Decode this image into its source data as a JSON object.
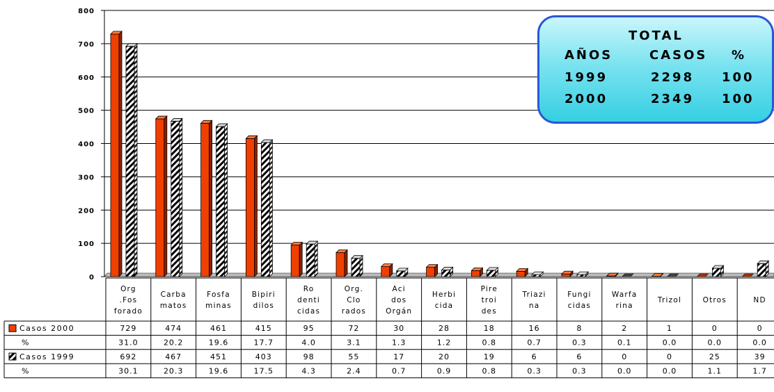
{
  "chart_data": {
    "type": "bar",
    "categories": [
      [
        "Org",
        ".Fos",
        "forado"
      ],
      [
        "Carba",
        "matos"
      ],
      [
        "Fosfa",
        "minas"
      ],
      [
        "Bipiri",
        "dilos"
      ],
      [
        "Ro",
        "denti",
        "cidas"
      ],
      [
        "Org.",
        "Clo",
        "rados"
      ],
      [
        "Aci",
        "dos",
        "Orgán"
      ],
      [
        "Herbi",
        "cida"
      ],
      [
        "Pire",
        "troi",
        "des"
      ],
      [
        "Triazi",
        "na"
      ],
      [
        "Fungi",
        "cidas"
      ],
      [
        "Warfa",
        "rina"
      ],
      [
        "Trizol"
      ],
      [
        "Otros"
      ],
      [
        "ND"
      ]
    ],
    "series": [
      {
        "name": "Casos 2000",
        "color": "#f04000",
        "pattern": "solid",
        "values": [
          729,
          474,
          461,
          415,
          95,
          72,
          30,
          28,
          18,
          16,
          8,
          2,
          1,
          0,
          0
        ],
        "percent": [
          "31.0",
          "20.2",
          "19.6",
          "17.7",
          "4.0",
          "3.1",
          "1.3",
          "1.2",
          "0.8",
          "0.7",
          "0.3",
          "0.1",
          "0.0",
          "0.0",
          "0.0"
        ]
      },
      {
        "name": "Casos 1999",
        "color": "#000000",
        "pattern": "diagonal-hatch",
        "values": [
          692,
          467,
          451,
          403,
          98,
          55,
          17,
          20,
          19,
          6,
          6,
          0,
          0,
          25,
          39
        ],
        "percent": [
          "30.1",
          "20.3",
          "19.6",
          "17.5",
          "4.3",
          "2.4",
          "0.7",
          "0.9",
          "0.8",
          "0.3",
          "0.3",
          "0.0",
          "0.0",
          "1.1",
          "1.7"
        ]
      }
    ],
    "row_labels": {
      "casos_2000": "Casos 2000",
      "pct_2000": "%",
      "casos_1999": "Casos 1999",
      "pct_1999": "%"
    },
    "ylim": [
      0,
      800
    ],
    "yticks": [
      0,
      100,
      200,
      300,
      400,
      500,
      600,
      700,
      800
    ],
    "grid": true,
    "legend": "data-table"
  },
  "total_box": {
    "title": "TOTAL",
    "headers": [
      "AÑOS",
      "CASOS",
      "%"
    ],
    "rows": [
      [
        "1999",
        "2298",
        "100"
      ],
      [
        "2000",
        "2349",
        "100"
      ]
    ]
  }
}
